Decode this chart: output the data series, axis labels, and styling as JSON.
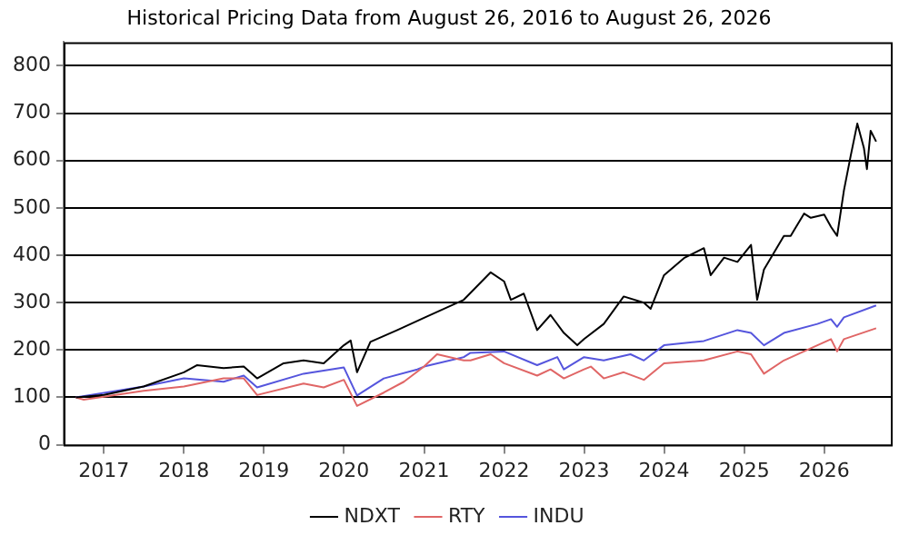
{
  "chart_data": {
    "type": "line",
    "title": "Historical Pricing Data from August 26, 2016 to August 26, 2026",
    "xlim": [
      "2016-07",
      "2026-11"
    ],
    "xticks": [
      {
        "value": "2017",
        "label": "2017"
      },
      {
        "value": "2018",
        "label": "2018"
      },
      {
        "value": "2019",
        "label": "2019"
      },
      {
        "value": "2020",
        "label": "2020"
      },
      {
        "value": "2021",
        "label": "2021"
      },
      {
        "value": "2022",
        "label": "2022"
      },
      {
        "value": "2023",
        "label": "2023"
      },
      {
        "value": "2024",
        "label": "2024"
      },
      {
        "value": "2025",
        "label": "2025"
      },
      {
        "value": "2026",
        "label": "2026"
      }
    ],
    "ylim": [
      0,
      850
    ],
    "yticks": [
      0,
      100,
      200,
      300,
      400,
      500,
      600,
      700,
      800
    ],
    "grid": "y",
    "legend": "bottom",
    "marker": "none",
    "line_style": "solid",
    "series": [
      {
        "name": "NDXT",
        "color": "#000000",
        "x": [
          "2016-08-26",
          "2017-01",
          "2017-07",
          "2018-01",
          "2018-03",
          "2018-07",
          "2018-10",
          "2018-12",
          "2019-04",
          "2019-07",
          "2019-10",
          "2020-01",
          "2020-02",
          "2020-03",
          "2020-05",
          "2020-09",
          "2021-01",
          "2021-07",
          "2021-11",
          "2022-01",
          "2022-02",
          "2022-04",
          "2022-06",
          "2022-08",
          "2022-10",
          "2022-12",
          "2023-01",
          "2023-04",
          "2023-07",
          "2023-10",
          "2023-11",
          "2024-01",
          "2024-04",
          "2024-07",
          "2024-08",
          "2024-10",
          "2024-12",
          "2025-02",
          "2025-03",
          "2025-04",
          "2025-07",
          "2025-08",
          "2025-10",
          "2025-11",
          "2026-01",
          "2026-02",
          "2026-03",
          "2026-04",
          "2026-05",
          "2026-06",
          "2026-07",
          "2026-07-15",
          "2026-08",
          "2026-08-26"
        ],
        "values": [
          100,
          105,
          123,
          153,
          168,
          162,
          165,
          140,
          172,
          178,
          172,
          210,
          220,
          153,
          217,
          242,
          268,
          306,
          364,
          345,
          306,
          319,
          242,
          274,
          236,
          210,
          223,
          255,
          313,
          300,
          287,
          358,
          394,
          415,
          358,
          395,
          386,
          422,
          306,
          370,
          441,
          441,
          488,
          479,
          486,
          460,
          441,
          537,
          608,
          678,
          627,
          582,
          663,
          640
        ]
      },
      {
        "name": "RTY",
        "color": "#e06666",
        "x": [
          "2016-08-26",
          "2016-10",
          "2017-07",
          "2018-01",
          "2018-07",
          "2018-10",
          "2018-12",
          "2019-07",
          "2019-10",
          "2020-01",
          "2020-03",
          "2020-07",
          "2020-10",
          "2021-01",
          "2021-03",
          "2021-07",
          "2021-08",
          "2021-11",
          "2022-01",
          "2022-06",
          "2022-08",
          "2022-10",
          "2023-01",
          "2023-02",
          "2023-04",
          "2023-07",
          "2023-10",
          "2024-01",
          "2024-07",
          "2024-12",
          "2025-02",
          "2025-04",
          "2025-07",
          "2025-12",
          "2026-02",
          "2026-03",
          "2026-04",
          "2026-08-26"
        ],
        "values": [
          100,
          95,
          114,
          123,
          140,
          140,
          105,
          129,
          121,
          137,
          82,
          110,
          133,
          165,
          191,
          178,
          178,
          191,
          172,
          146,
          159,
          140,
          159,
          165,
          140,
          153,
          137,
          172,
          178,
          197,
          191,
          150,
          178,
          210,
          223,
          197,
          223,
          246
        ]
      },
      {
        "name": "INDU",
        "color": "#5555dd",
        "x": [
          "2016-08-26",
          "2017-07",
          "2018-01",
          "2018-07",
          "2018-10",
          "2018-12",
          "2019-07",
          "2020-01",
          "2020-03",
          "2020-07",
          "2020-12",
          "2021-01",
          "2021-07",
          "2021-08",
          "2022-01",
          "2022-06",
          "2022-09",
          "2022-10",
          "2023-01",
          "2023-04",
          "2023-08",
          "2023-10",
          "2024-01",
          "2024-07",
          "2024-12",
          "2025-02",
          "2025-04",
          "2025-07",
          "2025-12",
          "2026-02",
          "2026-03",
          "2026-04",
          "2026-08-26"
        ],
        "values": [
          100,
          123,
          140,
          133,
          146,
          121,
          150,
          163,
          104,
          140,
          159,
          165,
          185,
          194,
          197,
          168,
          185,
          159,
          185,
          178,
          191,
          178,
          210,
          219,
          242,
          236,
          210,
          236,
          255,
          265,
          249,
          269,
          294
        ]
      }
    ]
  }
}
